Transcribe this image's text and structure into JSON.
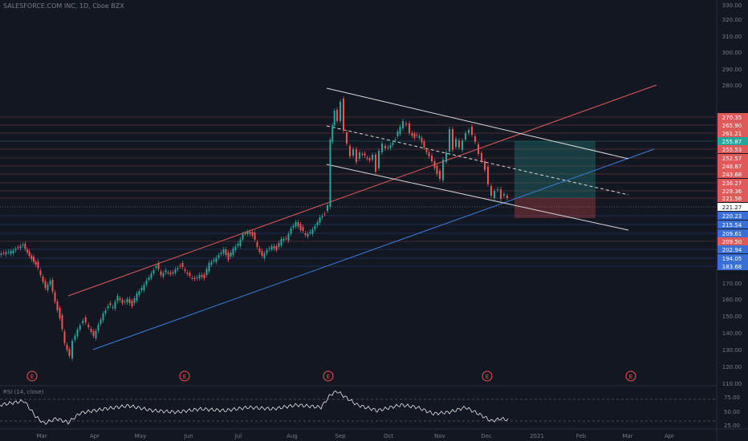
{
  "header": {
    "symbol_title": "SALESFORCE.COM INC, 1D, Cboe BZX"
  },
  "rsi": {
    "label": "RSI (14, close)",
    "ticks": [
      "75.00",
      "50.00",
      "25.00"
    ]
  },
  "x_axis": {
    "labels": [
      "Mar",
      "Apr",
      "May",
      "Jun",
      "Jul",
      "Aug",
      "Sep",
      "Oct",
      "Nov",
      "Dec",
      "2021",
      "Feb",
      "Mar",
      "Apr"
    ]
  },
  "price_axis": {
    "ticks": [
      "330.00",
      "320.00",
      "310.00",
      "300.00",
      "290.00",
      "280.00",
      "170.00",
      "160.00",
      "150.00",
      "140.00",
      "130.00",
      "120.00",
      "110.00"
    ]
  },
  "earnings_markers": [
    "E",
    "E",
    "E",
    "E",
    "E"
  ],
  "level_lines": [
    {
      "label": "270.35",
      "color": "#e05a5a"
    },
    {
      "label": "265.90",
      "color": "#e05a5a"
    },
    {
      "label": "261.21",
      "color": "#e05a5a"
    },
    {
      "label": "255.87",
      "color": "#26a69a"
    },
    {
      "label": "255.53",
      "color": "#e05a5a"
    },
    {
      "label": "252.57",
      "color": "#e05a5a"
    },
    {
      "label": "248.87",
      "color": "#e05a5a"
    },
    {
      "label": "243.68",
      "color": "#e05a5a"
    },
    {
      "label": "236.27",
      "color": "#e05a5a"
    },
    {
      "label": "229.36",
      "color": "#e05a5a"
    },
    {
      "label": "221.56",
      "color": "#e05a5a"
    },
    {
      "label": "221.27",
      "color": "#ffffff"
    },
    {
      "label": "220.23",
      "color": "#3b6fd8"
    },
    {
      "label": "215.54",
      "color": "#3b6fd8"
    },
    {
      "label": "209.61",
      "color": "#3b6fd8"
    },
    {
      "label": "209.50",
      "color": "#e05a5a"
    },
    {
      "label": "202.94",
      "color": "#3b6fd8"
    },
    {
      "label": "194.05",
      "color": "#3b6fd8"
    },
    {
      "label": "183.68",
      "color": "#3b6fd8"
    }
  ],
  "colors": {
    "background": "#131722",
    "bull_candle": "#26a69a",
    "bear_candle": "#ef5350",
    "uptrend_line": "#e05a5a",
    "support_line": "#3b7ddd",
    "channel": "#d9d9d9"
  }
}
